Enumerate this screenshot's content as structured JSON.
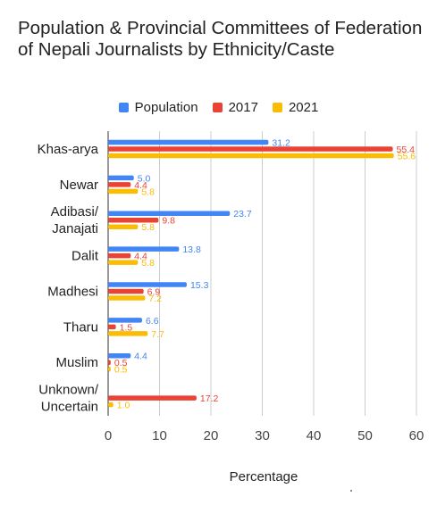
{
  "chart_data": {
    "type": "bar",
    "orientation": "horizontal",
    "title": "Population & Provincial Committees of Federation of Nepali Journalists by Ethnicity/Caste",
    "xlabel": "Percentage",
    "ylabel": "",
    "xlim": [
      0,
      60
    ],
    "x_ticks": [
      "0",
      "10",
      "20",
      "30",
      "40",
      "50",
      "60"
    ],
    "grid": true,
    "legend_position": "top",
    "categories": [
      [
        "Khas-arya"
      ],
      [
        "Newar"
      ],
      [
        "Adibasi/",
        "Janajati"
      ],
      [
        "Dalit"
      ],
      [
        "Madhesi"
      ],
      [
        "Tharu"
      ],
      [
        "Muslim"
      ],
      [
        "Unknown/",
        "Uncertain"
      ]
    ],
    "series": [
      {
        "name": "Population",
        "color": "#4285f4",
        "values": [
          31.2,
          5.0,
          23.7,
          13.8,
          15.3,
          6.6,
          4.4,
          null
        ],
        "labels": [
          "31.2",
          "5.0",
          "23.7",
          "13.8",
          "15.3",
          "6.6",
          "4.4",
          null
        ]
      },
      {
        "name": "2017",
        "color": "#ea4335",
        "values": [
          55.4,
          4.4,
          9.8,
          4.4,
          6.9,
          1.5,
          0.5,
          17.2
        ],
        "labels": [
          "55.4",
          "4.4",
          "9.8",
          "4.4",
          "6.9",
          "1.5",
          "0.5",
          "17.2"
        ]
      },
      {
        "name": "2021",
        "color": "#fbbc04",
        "values": [
          55.6,
          5.8,
          5.8,
          5.8,
          7.2,
          7.7,
          0.5,
          1.0
        ],
        "labels": [
          "55.6",
          "5.8",
          "5.8",
          "5.8",
          "7.2",
          "7.7",
          "0.5",
          "1.0"
        ]
      }
    ]
  }
}
